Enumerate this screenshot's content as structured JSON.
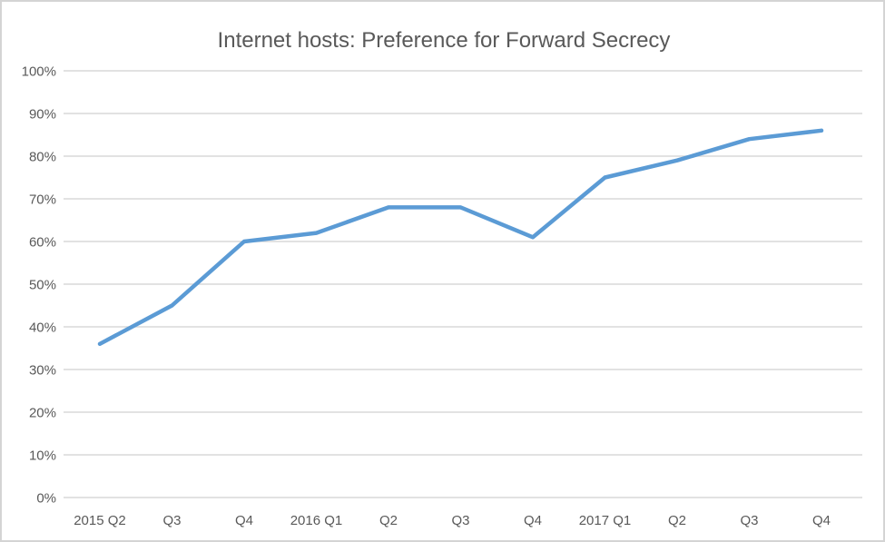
{
  "chart_data": {
    "type": "line",
    "title": "Internet hosts: Preference for Forward Secrecy",
    "categories": [
      "2015 Q2",
      "Q3",
      "Q4",
      "2016 Q1",
      "Q2",
      "Q3",
      "Q4",
      "2017 Q1",
      "Q2",
      "Q3",
      "Q4"
    ],
    "values": [
      36,
      45,
      60,
      62,
      68,
      68,
      61,
      75,
      79,
      84,
      86
    ],
    "xlabel": "",
    "ylabel": "",
    "ylim": [
      0,
      100
    ],
    "y_tick_step": 10,
    "y_tick_labels": [
      "0%",
      "10%",
      "20%",
      "30%",
      "40%",
      "50%",
      "60%",
      "70%",
      "80%",
      "90%",
      "100%"
    ],
    "grid": "horizontal",
    "legend_position": "none",
    "colors": {
      "line": "#5b9bd5",
      "gridline": "#d9d9d9",
      "text": "#595959",
      "frame_border": "#d4d4d4",
      "background": "#ffffff"
    }
  }
}
